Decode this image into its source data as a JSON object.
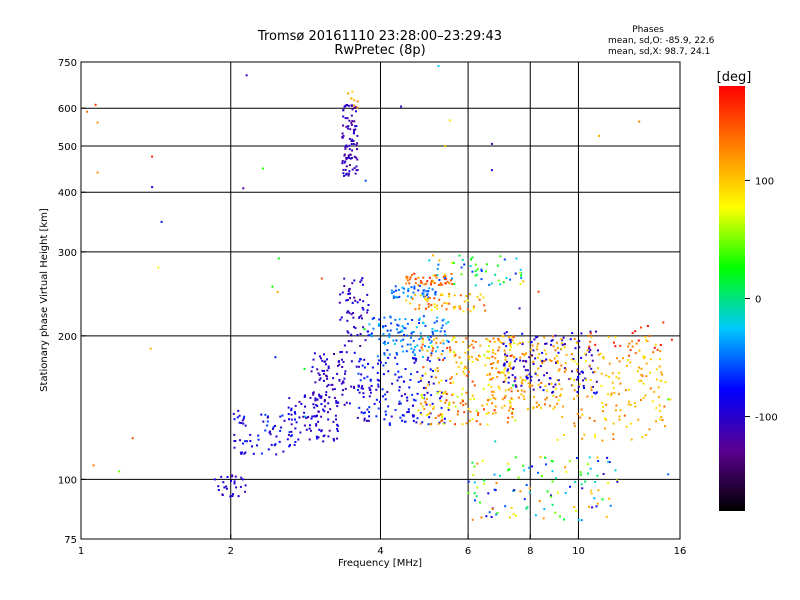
{
  "chart_data": {
    "type": "scatter",
    "title": "Tromsø 20161110 23:28:00–23:29:43",
    "subtitle": "RwPretec (8p)",
    "xlabel": "Frequency [MHz]",
    "ylabel": "Stationary phase Virtual Height [km]",
    "x_scale": "log",
    "y_scale": "log",
    "xlim": [
      1,
      16
    ],
    "ylim": [
      75,
      750
    ],
    "x_ticks": [
      1,
      2,
      4,
      6,
      8,
      10,
      16
    ],
    "x_tick_labels": [
      "1",
      "2",
      "4",
      "6",
      "8",
      "10",
      "16"
    ],
    "y_ticks": [
      75,
      100,
      200,
      300,
      400,
      500,
      600,
      750
    ],
    "y_tick_labels": [
      "75",
      "100",
      "200",
      "300",
      "400",
      "500",
      "600",
      "750"
    ],
    "grid": true,
    "phase_info": {
      "heading": "Phases",
      "line_o": "mean, sd,O: -85.9, 22.6",
      "line_x": "mean, sd,X:  98.7, 24.1"
    },
    "colorbar": {
      "label": "[deg]",
      "range": [
        -180,
        180
      ],
      "ticks": [
        100,
        0,
        -100
      ],
      "tick_labels": [
        "100",
        "0",
        "-100"
      ],
      "colormap": [
        "#000000",
        "#5a0090",
        "#0000ff",
        "#00c8ff",
        "#00ff00",
        "#ffff00",
        "#ff8000",
        "#ff0000"
      ]
    },
    "clusters": [
      {
        "f": [
          1.85,
          2.15
        ],
        "h": [
          92,
          102
        ],
        "n": 28,
        "phase": [
          -115,
          -85
        ]
      },
      {
        "f": [
          2.0,
          2.7
        ],
        "h": [
          112,
          140
        ],
        "n": 70,
        "phase": [
          -110,
          -60
        ]
      },
      {
        "f": [
          2.6,
          3.3
        ],
        "h": [
          120,
          150
        ],
        "n": 90,
        "phase": [
          -120,
          -80
        ]
      },
      {
        "f": [
          2.9,
          3.7
        ],
        "h": [
          140,
          185
        ],
        "n": 90,
        "phase": [
          -120,
          -85
        ]
      },
      {
        "f": [
          3.3,
          3.8
        ],
        "h": [
          190,
          265
        ],
        "n": 60,
        "phase": [
          -120,
          -80
        ]
      },
      {
        "f": [
          3.35,
          3.6
        ],
        "h": [
          430,
          610
        ],
        "n": 90,
        "phase": [
          -125,
          -90
        ]
      },
      {
        "f": [
          3.4,
          3.6
        ],
        "h": [
          600,
          660
        ],
        "n": 8,
        "phase": [
          90,
          130
        ]
      },
      {
        "f": [
          3.6,
          5.5
        ],
        "h": [
          130,
          180
        ],
        "n": 160,
        "phase": [
          -110,
          -60
        ]
      },
      {
        "f": [
          3.8,
          5.5
        ],
        "h": [
          180,
          220
        ],
        "n": 120,
        "phase": [
          -70,
          -20
        ]
      },
      {
        "f": [
          4.5,
          5.6
        ],
        "h": [
          255,
          270
        ],
        "n": 45,
        "phase": [
          120,
          170
        ]
      },
      {
        "f": [
          4.2,
          5.2
        ],
        "h": [
          240,
          255
        ],
        "n": 40,
        "phase": [
          -70,
          -30
        ]
      },
      {
        "f": [
          4.5,
          6.5
        ],
        "h": [
          225,
          245
        ],
        "n": 60,
        "phase": [
          80,
          150
        ]
      },
      {
        "f": [
          5.0,
          7.8
        ],
        "h": [
          255,
          295
        ],
        "n": 55,
        "phase": [
          -70,
          110
        ]
      },
      {
        "f": [
          4.8,
          7.5
        ],
        "h": [
          130,
          200
        ],
        "n": 230,
        "phase": [
          60,
          160
        ]
      },
      {
        "f": [
          6.5,
          9.5
        ],
        "h": [
          140,
          200
        ],
        "n": 140,
        "phase": [
          90,
          140
        ]
      },
      {
        "f": [
          7.0,
          11.0
        ],
        "h": [
          150,
          205
        ],
        "n": 130,
        "phase": [
          -120,
          -70
        ]
      },
      {
        "f": [
          9.0,
          15.0
        ],
        "h": [
          120,
          200
        ],
        "n": 170,
        "phase": [
          80,
          140
        ]
      },
      {
        "f": [
          10.5,
          15.5
        ],
        "h": [
          180,
          215
        ],
        "n": 18,
        "phase": [
          150,
          175
        ]
      },
      {
        "f": [
          6.0,
          12.0
        ],
        "h": [
          82,
          112
        ],
        "n": 120,
        "phase": [
          -110,
          130
        ]
      },
      {
        "f": [
          1.0,
          16.0
        ],
        "h": [
          80,
          740
        ],
        "n": 28,
        "phase": [
          -120,
          170
        ]
      }
    ],
    "points": [
      {
        "f": 1.07,
        "h": 610,
        "phase": 160
      },
      {
        "f": 1.08,
        "h": 560,
        "phase": 120
      },
      {
        "f": 1.08,
        "h": 440,
        "phase": 120
      },
      {
        "f": 1.39,
        "h": 475,
        "phase": 165
      },
      {
        "f": 1.39,
        "h": 410,
        "phase": -90
      },
      {
        "f": 1.43,
        "h": 278,
        "phase": 75
      },
      {
        "f": 1.38,
        "h": 188,
        "phase": 110
      },
      {
        "f": 1.27,
        "h": 122,
        "phase": 150
      },
      {
        "f": 1.06,
        "h": 107,
        "phase": 130
      },
      {
        "f": 4.4,
        "h": 605,
        "phase": -100
      },
      {
        "f": 6.7,
        "h": 505,
        "phase": -120
      },
      {
        "f": 6.7,
        "h": 445,
        "phase": -95
      },
      {
        "f": 11.0,
        "h": 525,
        "phase": 110
      },
      {
        "f": 5.4,
        "h": 500,
        "phase": 100
      }
    ]
  }
}
